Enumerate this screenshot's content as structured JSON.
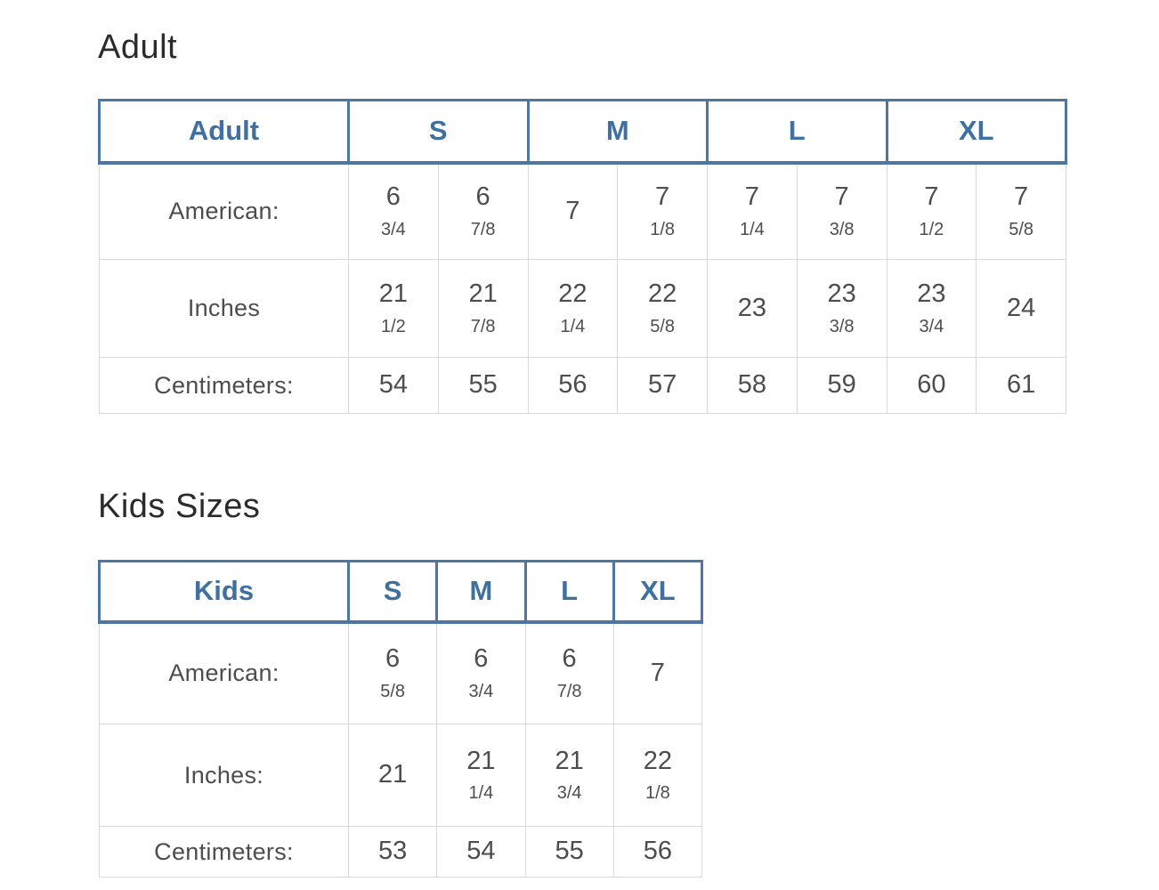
{
  "colors": {
    "page_bg": "#ffffff",
    "accent_blue": "#4d76a0",
    "accent_blue_text": "#3f709f",
    "heading_text": "#2b2b2b",
    "body_text": "#4d4d4d",
    "cell_border": "#d8d8d8"
  },
  "adult": {
    "heading": "Adult",
    "header": {
      "label": "Adult",
      "sizes": [
        "S",
        "M",
        "L",
        "XL"
      ]
    },
    "rows": [
      {
        "label": "American:",
        "cells": [
          {
            "main": "6",
            "frac": "3/4"
          },
          {
            "main": "6",
            "frac": "7/8"
          },
          {
            "main": "7",
            "frac": ""
          },
          {
            "main": "7",
            "frac": "1/8"
          },
          {
            "main": "7",
            "frac": "1/4"
          },
          {
            "main": "7",
            "frac": "3/8"
          },
          {
            "main": "7",
            "frac": "1/2"
          },
          {
            "main": "7",
            "frac": "5/8"
          }
        ]
      },
      {
        "label": "Inches",
        "cells": [
          {
            "main": "21",
            "frac": "1/2"
          },
          {
            "main": "21",
            "frac": "7/8"
          },
          {
            "main": "22",
            "frac": "1/4"
          },
          {
            "main": "22",
            "frac": "5/8"
          },
          {
            "main": "23",
            "frac": ""
          },
          {
            "main": "23",
            "frac": "3/8"
          },
          {
            "main": "23",
            "frac": "3/4"
          },
          {
            "main": "24",
            "frac": ""
          }
        ]
      },
      {
        "label": "Centimeters:",
        "cells": [
          {
            "main": "54",
            "frac": ""
          },
          {
            "main": "55",
            "frac": ""
          },
          {
            "main": "56",
            "frac": ""
          },
          {
            "main": "57",
            "frac": ""
          },
          {
            "main": "58",
            "frac": ""
          },
          {
            "main": "59",
            "frac": ""
          },
          {
            "main": "60",
            "frac": ""
          },
          {
            "main": "61",
            "frac": ""
          }
        ]
      }
    ]
  },
  "kids": {
    "heading": "Kids Sizes",
    "header": {
      "label": "Kids",
      "sizes": [
        "S",
        "M",
        "L",
        "XL"
      ]
    },
    "rows": [
      {
        "label": "American:",
        "cells": [
          {
            "main": "6",
            "frac": "5/8"
          },
          {
            "main": "6",
            "frac": "3/4"
          },
          {
            "main": "6",
            "frac": "7/8"
          },
          {
            "main": "7",
            "frac": ""
          }
        ]
      },
      {
        "label": "Inches:",
        "cells": [
          {
            "main": "21",
            "frac": ""
          },
          {
            "main": "21",
            "frac": "1/4"
          },
          {
            "main": "21",
            "frac": "3/4"
          },
          {
            "main": "22",
            "frac": "1/8"
          }
        ]
      },
      {
        "label": "Centimeters:",
        "cells": [
          {
            "main": "53",
            "frac": ""
          },
          {
            "main": "54",
            "frac": ""
          },
          {
            "main": "55",
            "frac": ""
          },
          {
            "main": "56",
            "frac": ""
          }
        ]
      }
    ]
  }
}
